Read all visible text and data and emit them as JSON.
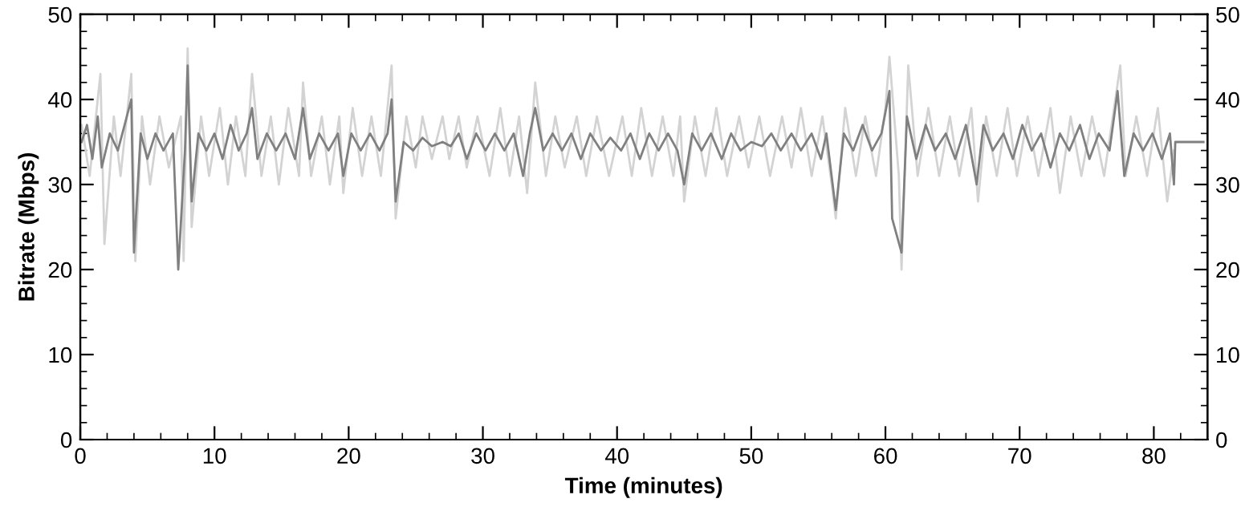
{
  "chart_data": {
    "type": "line",
    "xlabel": "Time (minutes)",
    "ylabel": "Bitrate (Mbps)",
    "xlim": [
      0,
      84
    ],
    "xticks": [
      0,
      10,
      20,
      30,
      40,
      50,
      60,
      70,
      80
    ],
    "ylim": [
      0,
      50
    ],
    "yticks": [
      0,
      10,
      20,
      30,
      40,
      50
    ],
    "y2lim": [
      0,
      50
    ],
    "y2ticks": [
      0,
      10,
      20,
      30,
      40,
      50
    ],
    "grid": false,
    "legend": false,
    "marker": "none",
    "line_style": "solid",
    "series": [
      {
        "color": "#d3d3d3",
        "x": [
          0.1,
          0.7,
          1.5,
          1.8,
          2.5,
          3.0,
          3.8,
          4.1,
          4.6,
          5.2,
          5.9,
          6.6,
          7.5,
          7.7,
          8.0,
          8.3,
          9.0,
          9.6,
          10.4,
          11.0,
          11.6,
          12.3,
          12.8,
          13.5,
          14.2,
          14.8,
          15.5,
          16.3,
          16.6,
          17.2,
          18.0,
          18.6,
          19.3,
          19.6,
          20.3,
          21.0,
          21.7,
          22.4,
          23.2,
          23.5,
          24.3,
          25.0,
          25.5,
          26.2,
          27.0,
          27.5,
          28.2,
          28.8,
          29.6,
          30.5,
          31.3,
          32.0,
          32.7,
          33.3,
          33.9,
          34.7,
          35.4,
          36.1,
          37.0,
          37.7,
          38.5,
          39.4,
          40.4,
          41.1,
          41.8,
          42.6,
          43.4,
          44.2,
          44.7,
          45.0,
          45.8,
          46.6,
          47.4,
          48.2,
          49.1,
          49.8,
          50.6,
          51.4,
          52.3,
          53.0,
          53.7,
          54.5,
          55.3,
          56.0,
          56.3,
          57.0,
          57.8,
          58.5,
          59.3,
          60.0,
          60.3,
          61.0,
          61.2,
          61.7,
          62.4,
          63.2,
          64.0,
          64.8,
          65.5,
          66.4,
          66.9,
          67.5,
          68.3,
          69.1,
          69.8,
          70.6,
          71.4,
          72.3,
          73.0,
          73.8,
          74.6,
          75.4,
          76.3,
          77.5,
          77.9,
          78.7,
          79.5,
          80.3,
          81.0,
          81.5
        ],
        "values": [
          37,
          31,
          43,
          23,
          38,
          31,
          43,
          21,
          38,
          30,
          38,
          32,
          38,
          21,
          46,
          25,
          38,
          31,
          39,
          30,
          38,
          31,
          43,
          31,
          38,
          30,
          39,
          31,
          42,
          31,
          38,
          30,
          38,
          29,
          39,
          31,
          38,
          31,
          44,
          26,
          38,
          32,
          38,
          33,
          38,
          33,
          38,
          32,
          38,
          31,
          39,
          31,
          38,
          29,
          42,
          31,
          38,
          32,
          38,
          31,
          38,
          31,
          38,
          31,
          39,
          31,
          38,
          31,
          38,
          28,
          38,
          31,
          39,
          31,
          38,
          32,
          38,
          31,
          38,
          32,
          39,
          31,
          38,
          30,
          26,
          39,
          31,
          38,
          31,
          39,
          45,
          31,
          20,
          44,
          31,
          39,
          31,
          38,
          31,
          39,
          28,
          38,
          31,
          39,
          31,
          38,
          31,
          39,
          29,
          38,
          31,
          38,
          31,
          44,
          31,
          38,
          31,
          39,
          28,
          34
        ]
      },
      {
        "color": "#808080",
        "x": [
          0.1,
          0.5,
          0.9,
          1.3,
          1.6,
          2.2,
          2.8,
          3.3,
          3.8,
          4.0,
          4.5,
          5.0,
          5.6,
          6.2,
          6.9,
          7.3,
          7.8,
          8.0,
          8.3,
          8.8,
          9.4,
          10.0,
          10.6,
          11.2,
          11.8,
          12.4,
          12.8,
          13.2,
          13.9,
          14.6,
          15.3,
          16.0,
          16.6,
          17.1,
          17.8,
          18.5,
          19.2,
          19.6,
          20.2,
          20.9,
          21.6,
          22.3,
          22.9,
          23.2,
          23.5,
          24.1,
          24.8,
          25.5,
          26.2,
          27.0,
          27.6,
          28.2,
          28.8,
          29.5,
          30.2,
          30.9,
          31.6,
          32.3,
          33.0,
          33.5,
          33.9,
          34.5,
          35.2,
          35.9,
          36.6,
          37.3,
          38.0,
          38.8,
          39.5,
          40.3,
          41.0,
          41.7,
          42.4,
          43.1,
          43.8,
          44.5,
          45.0,
          45.6,
          46.3,
          47.0,
          47.8,
          48.5,
          49.2,
          50.0,
          50.8,
          51.5,
          52.2,
          53.0,
          53.7,
          54.5,
          55.2,
          55.6,
          56.3,
          56.9,
          57.6,
          58.3,
          59.0,
          59.7,
          60.3,
          60.5,
          61.2,
          61.6,
          62.3,
          63.0,
          63.7,
          64.5,
          65.2,
          66.0,
          66.8,
          67.3,
          68.0,
          68.8,
          69.5,
          70.2,
          70.9,
          71.6,
          72.3,
          73.0,
          73.7,
          74.5,
          75.2,
          75.9,
          76.7,
          77.3,
          77.8,
          78.5,
          79.2,
          79.9,
          80.6,
          81.2,
          81.5,
          81.6,
          83.7
        ],
        "values": [
          35,
          37,
          33,
          38,
          32,
          36,
          34,
          37,
          40,
          22,
          36,
          33,
          36,
          34,
          36,
          20,
          34,
          44,
          28,
          36,
          34,
          36,
          33,
          37,
          34,
          36,
          39,
          33,
          36,
          34,
          36,
          33,
          39,
          33,
          36,
          34,
          36,
          31,
          36,
          34,
          36,
          34,
          36,
          40,
          28,
          35,
          34,
          35.5,
          34.5,
          35,
          34.5,
          36,
          33,
          36,
          34,
          36,
          34,
          36,
          31,
          36,
          39,
          34,
          36,
          34,
          36,
          33,
          36,
          34,
          35.5,
          34,
          36,
          33,
          36,
          34,
          36,
          34,
          30,
          36,
          34,
          36,
          33,
          36,
          34,
          35,
          34.5,
          36,
          34,
          36,
          34,
          36,
          33,
          36,
          27,
          36,
          34,
          37,
          34,
          36,
          41,
          26,
          22,
          38,
          33,
          37,
          34,
          36,
          33,
          37,
          30,
          37,
          34,
          36,
          33,
          37,
          34,
          36,
          32,
          36,
          34,
          37,
          33,
          36,
          34,
          41,
          31,
          36,
          34,
          36,
          33,
          36,
          30,
          35,
          35
        ]
      }
    ]
  }
}
